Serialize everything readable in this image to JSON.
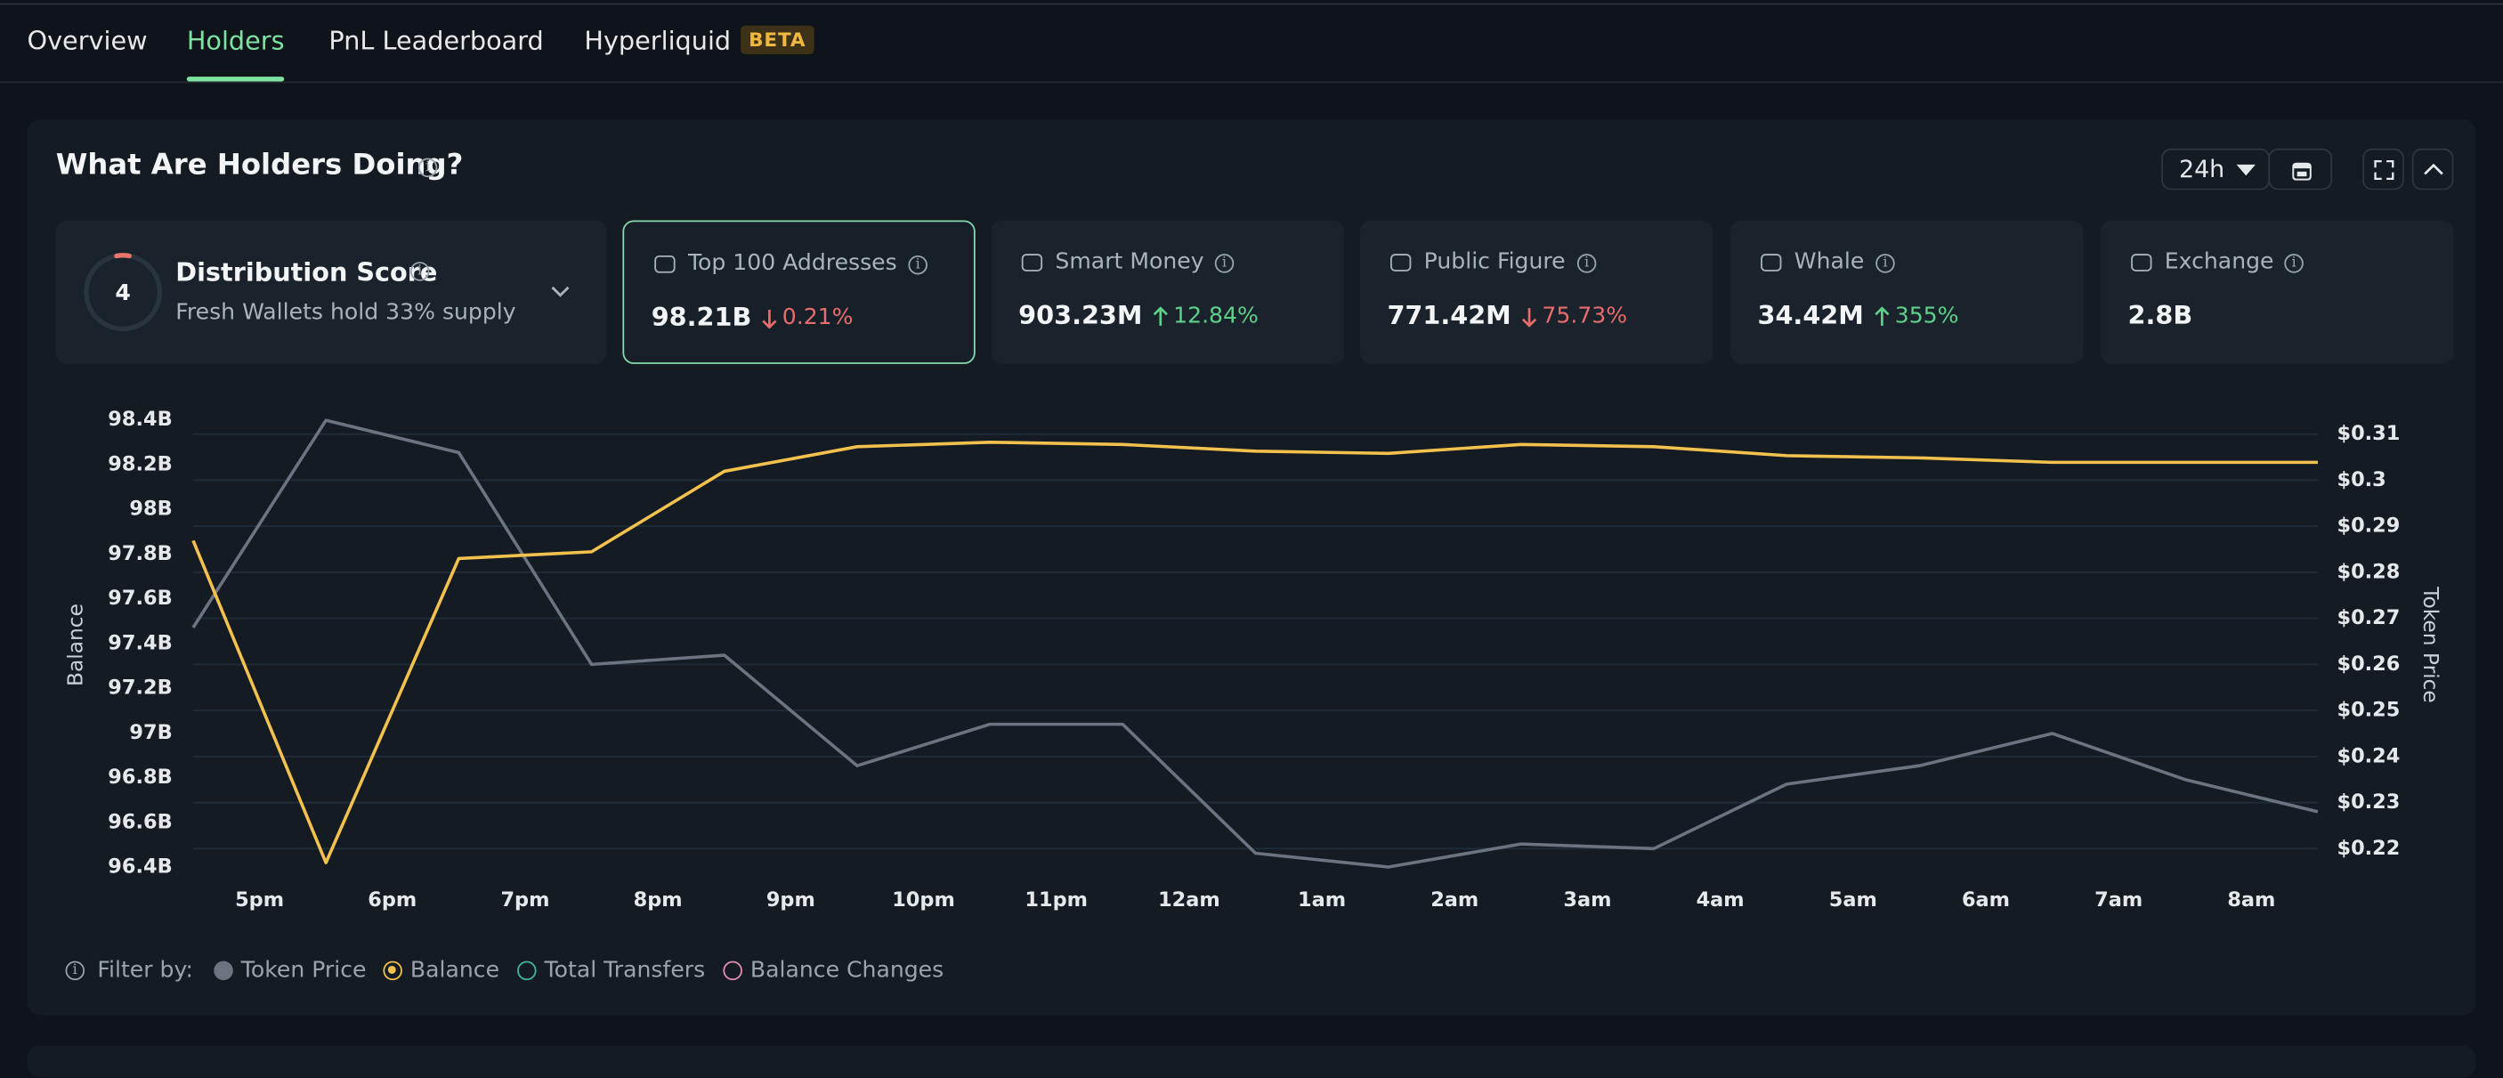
{
  "tabs": {
    "items": [
      "Overview",
      "Holders",
      "PnL Leaderboard",
      "Hyperliquid"
    ],
    "active": 1,
    "badge": "BETA"
  },
  "panel": {
    "title": "What Are Holders Doing?",
    "timeframe": "24h"
  },
  "score_card": {
    "score": 4,
    "title": "Distribution Score",
    "subtitle": "Fresh Wallets hold 33% supply"
  },
  "cards": [
    {
      "label": "Top 100 Addresses",
      "value": "98.21B",
      "change": "0.21%",
      "trend": "down",
      "selected": true
    },
    {
      "label": "Smart Money",
      "value": "903.23M",
      "change": "12.84%",
      "trend": "up"
    },
    {
      "label": "Public Figure",
      "value": "771.42M",
      "change": "75.73%",
      "trend": "down"
    },
    {
      "label": "Whale",
      "value": "34.42M",
      "change": "355%",
      "trend": "up"
    },
    {
      "label": "Exchange",
      "value": "2.8B"
    }
  ],
  "chart_data": {
    "type": "line",
    "y_label": "Balance",
    "y2_label": "Token Price",
    "x": [
      16.5,
      17.5,
      18.5,
      19.5,
      20.5,
      21.5,
      22.5,
      23.5,
      24.5,
      25.5,
      26.5,
      27.5,
      28.5,
      29.5,
      30.5,
      31.5,
      32.5
    ],
    "xlim": [
      16.5,
      32.5
    ],
    "xticks": [
      {
        "value": 17,
        "label": "5pm"
      },
      {
        "value": 18,
        "label": "6pm"
      },
      {
        "value": 19,
        "label": "7pm"
      },
      {
        "value": 20,
        "label": "8pm"
      },
      {
        "value": 21,
        "label": "9pm"
      },
      {
        "value": 22,
        "label": "10pm"
      },
      {
        "value": 23,
        "label": "11pm"
      },
      {
        "value": 24,
        "label": "12am"
      },
      {
        "value": 25,
        "label": "1am"
      },
      {
        "value": 26,
        "label": "2am"
      },
      {
        "value": 27,
        "label": "3am"
      },
      {
        "value": 28,
        "label": "4am"
      },
      {
        "value": 29,
        "label": "5am"
      },
      {
        "value": 30,
        "label": "6am"
      },
      {
        "value": 31,
        "label": "7am"
      },
      {
        "value": 32,
        "label": "8am"
      }
    ],
    "ylim": [
      96.38,
      98.4
    ],
    "yticks": [
      {
        "value": 96.4,
        "label": "96.4B"
      },
      {
        "value": 96.6,
        "label": "96.6B"
      },
      {
        "value": 96.8,
        "label": "96.8B"
      },
      {
        "value": 97,
        "label": "97B"
      },
      {
        "value": 97.2,
        "label": "97.2B"
      },
      {
        "value": 97.4,
        "label": "97.4B"
      },
      {
        "value": 97.6,
        "label": "97.6B"
      },
      {
        "value": 97.8,
        "label": "97.8B"
      },
      {
        "value": 98,
        "label": "98B"
      },
      {
        "value": 98.2,
        "label": "98.2B"
      },
      {
        "value": 98.4,
        "label": "98.4B"
      }
    ],
    "y2lim": [
      0.215,
      0.3131
    ],
    "y2ticks": [
      {
        "value": 0.22,
        "label": "$0.22"
      },
      {
        "value": 0.23,
        "label": "$0.23"
      },
      {
        "value": 0.24,
        "label": "$0.24"
      },
      {
        "value": 0.25,
        "label": "$0.25"
      },
      {
        "value": 0.26,
        "label": "$0.26"
      },
      {
        "value": 0.27,
        "label": "$0.27"
      },
      {
        "value": 0.28,
        "label": "$0.28"
      },
      {
        "value": 0.29,
        "label": "$0.29"
      },
      {
        "value": 0.3,
        "label": "$0.3"
      },
      {
        "value": 0.31,
        "label": "$0.31"
      }
    ],
    "grid": "y2",
    "series": [
      {
        "name": "Token Price",
        "color": "#6b7480",
        "axis": "y2",
        "values": [
          0.268,
          0.313,
          0.306,
          0.26,
          0.262,
          0.238,
          0.247,
          0.247,
          0.219,
          0.216,
          0.221,
          0.22,
          0.234,
          0.238,
          0.245,
          0.235,
          0.228
        ]
      },
      {
        "name": "Balance",
        "color": "#f2c14e",
        "values": [
          97.86,
          96.42,
          97.78,
          97.81,
          98.17,
          98.28,
          98.3,
          98.29,
          98.26,
          98.25,
          98.29,
          98.28,
          98.24,
          98.23,
          98.21,
          98.21,
          98.21
        ]
      }
    ]
  },
  "filters": {
    "label": "Filter by:",
    "extra": [
      {
        "name": "Total Transfers",
        "color": "#3fb89a"
      },
      {
        "name": "Balance Changes",
        "color": "#e58fb0"
      }
    ]
  }
}
